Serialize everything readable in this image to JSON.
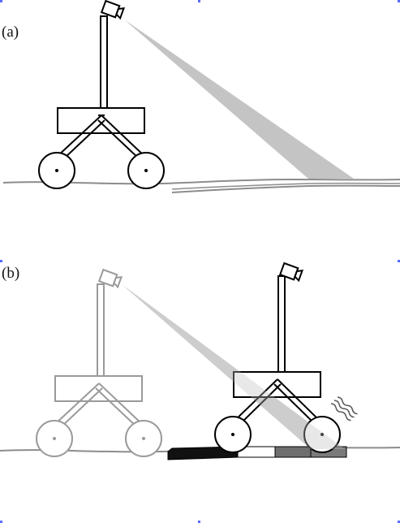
{
  "panels": {
    "a": {
      "label": "(a)"
    },
    "b": {
      "label": "(b)"
    }
  },
  "colors": {
    "outline": "#000000",
    "ghost_outline": "#9a9a9a",
    "ground": "#8c8c8c",
    "beam_a": "#c4c4c4",
    "beam_b": "#d6d6d6",
    "strip_black": "#111111",
    "strip_dark_gray": "#6f6f6f",
    "strip_light": "#ffffff",
    "selection_handle": "#5b6cff"
  }
}
